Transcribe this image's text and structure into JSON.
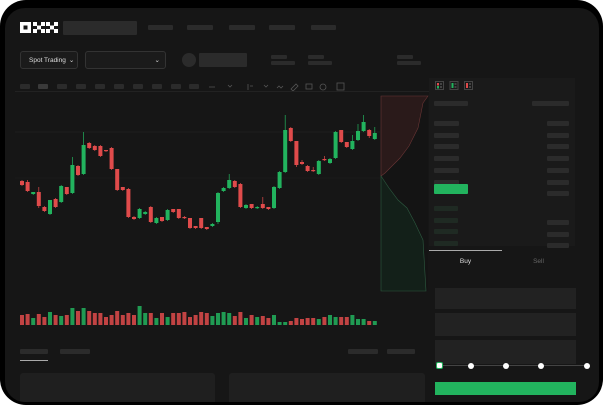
{
  "header": {
    "logo": "OKX",
    "nav_items": 5
  },
  "toolbar": {
    "market_selector": "Spot Trading",
    "pair_selector": "",
    "icons": [
      "chart-type-icon",
      "indicator-icon",
      "line-icon",
      "ruler-icon",
      "camera-icon",
      "settings-icon",
      "fullscreen-icon"
    ]
  },
  "colors": {
    "up": "#22b35e",
    "down": "#e04b4b",
    "accent": "#22b35e",
    "background": "#161616"
  },
  "chart_data": {
    "type": "candlestick",
    "candles": [
      [
        219,
        215,
        220,
        214
      ],
      [
        218,
        209,
        220,
        208
      ],
      [
        206,
        208,
        208,
        205
      ],
      [
        208,
        194,
        213,
        192
      ],
      [
        193,
        189,
        194,
        188
      ],
      [
        186,
        200,
        200,
        185
      ],
      [
        201,
        193,
        202,
        192
      ],
      [
        198,
        214,
        215,
        197
      ],
      [
        213,
        206,
        213,
        205
      ],
      [
        207,
        235,
        243,
        206
      ],
      [
        234,
        225,
        235,
        224
      ],
      [
        226,
        255,
        268,
        225
      ],
      [
        257,
        252,
        258,
        251
      ],
      [
        254,
        250,
        255,
        249
      ],
      [
        254,
        244,
        255,
        243
      ],
      [
        250,
        249,
        250,
        248
      ],
      [
        252,
        231,
        253,
        230
      ],
      [
        231,
        210,
        231,
        209
      ],
      [
        213,
        210,
        213,
        209
      ],
      [
        211,
        183,
        212,
        182
      ],
      [
        183,
        181,
        184,
        180
      ],
      [
        182,
        191,
        192,
        181
      ],
      [
        186,
        188,
        189,
        185
      ],
      [
        193,
        178,
        194,
        177
      ],
      [
        177,
        182,
        183,
        176
      ],
      [
        183,
        179,
        183,
        178
      ],
      [
        180,
        190,
        191,
        179
      ],
      [
        191,
        188,
        191,
        187
      ],
      [
        191,
        182,
        191,
        181
      ],
      [
        183,
        182,
        184,
        181
      ],
      [
        182,
        172,
        182,
        171
      ],
      [
        174,
        172,
        174,
        171
      ],
      [
        182,
        172,
        182,
        171
      ],
      [
        173,
        171,
        173,
        170
      ],
      [
        174,
        176,
        177,
        173
      ],
      [
        178,
        207,
        208,
        176
      ],
      [
        209,
        212,
        213,
        208
      ],
      [
        212,
        220,
        226,
        211
      ],
      [
        219,
        213,
        220,
        212
      ],
      [
        216,
        193,
        217,
        192
      ],
      [
        192,
        195,
        196,
        191
      ],
      [
        196,
        192,
        196,
        191
      ],
      [
        192,
        193,
        194,
        191
      ],
      [
        196,
        192,
        203,
        191
      ],
      [
        193,
        191,
        193,
        190
      ],
      [
        192,
        213,
        214,
        191
      ],
      [
        212,
        228,
        229,
        211
      ],
      [
        228,
        270,
        285,
        227
      ],
      [
        272,
        259,
        273,
        258
      ],
      [
        259,
        235,
        259,
        233
      ],
      [
        238,
        236,
        240,
        235
      ],
      [
        234,
        229,
        235,
        228
      ],
      [
        230,
        229,
        233,
        228
      ],
      [
        226,
        239,
        240,
        225
      ],
      [
        241,
        240,
        244,
        239
      ],
      [
        237,
        241,
        242,
        236
      ],
      [
        242,
        268,
        269,
        241
      ],
      [
        270,
        258,
        270,
        257
      ],
      [
        258,
        253,
        258,
        252
      ],
      [
        251,
        259,
        265,
        250
      ],
      [
        260,
        269,
        276,
        259
      ],
      [
        269,
        278,
        285,
        268
      ],
      [
        270,
        264,
        271,
        262
      ],
      [
        261,
        267,
        273,
        260
      ]
    ],
    "volume": [
      10,
      11,
      7,
      11,
      8,
      13,
      10,
      9,
      10,
      17,
      14,
      17,
      14,
      12,
      12,
      8,
      10,
      14,
      10,
      12,
      10,
      19,
      12,
      12,
      7,
      12,
      8,
      12,
      12,
      13,
      8,
      10,
      13,
      12,
      9,
      12,
      13,
      12,
      9,
      13,
      7,
      10,
      8,
      9,
      7,
      10,
      3,
      3,
      4,
      7,
      6,
      7,
      7,
      6,
      8,
      10,
      8,
      8,
      8,
      10,
      6,
      6,
      4,
      4
    ]
  },
  "order_book": {
    "asks": 6,
    "bids": 4
  },
  "trade": {
    "tabs": [
      {
        "label": "Buy"
      },
      {
        "label": "Sell"
      }
    ],
    "slider_steps": 5,
    "slider_value": 0
  }
}
